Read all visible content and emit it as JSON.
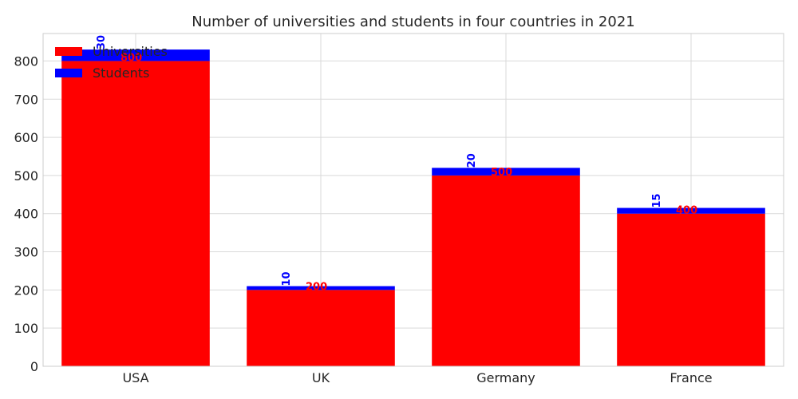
{
  "chart_data": {
    "type": "bar",
    "stacked": true,
    "title": "Number of universities and students in four countries in 2021",
    "xlabel": "",
    "ylabel": "",
    "categories": [
      "USA",
      "UK",
      "Germany",
      "France"
    ],
    "series": [
      {
        "name": "Universities",
        "color": "#ff0000",
        "values": [
          800,
          200,
          500,
          400
        ]
      },
      {
        "name": "Students",
        "color": "#0000ff",
        "values": [
          30,
          10,
          20,
          15
        ]
      }
    ],
    "ylim": [
      0,
      872
    ],
    "yticks": [
      0,
      100,
      200,
      300,
      400,
      500,
      600,
      700,
      800
    ],
    "grid": true,
    "legend_position": "top-left"
  }
}
